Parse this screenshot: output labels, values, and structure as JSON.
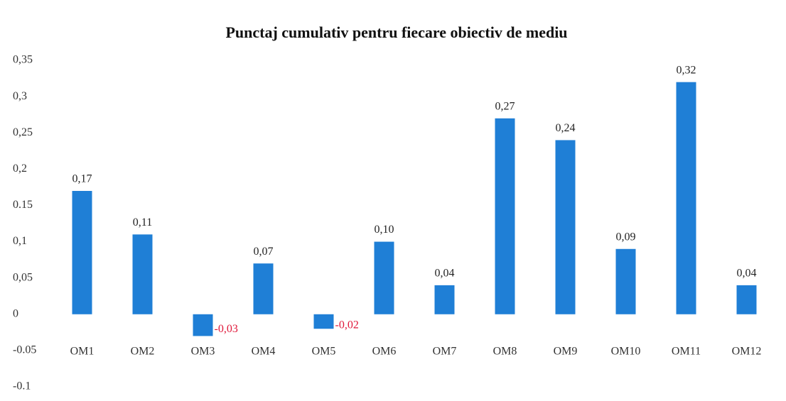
{
  "chart_data": {
    "type": "bar",
    "title": "Punctaj cumulativ pentru fiecare obiectiv de mediu",
    "categories": [
      "OM1",
      "OM2",
      "OM3",
      "OM4",
      "OM5",
      "OM6",
      "OM7",
      "OM8",
      "OM9",
      "OM10",
      "OM11",
      "OM12"
    ],
    "values": [
      0.17,
      0.11,
      -0.03,
      0.07,
      -0.02,
      0.1,
      0.04,
      0.27,
      0.24,
      0.09,
      0.32,
      0.04
    ],
    "value_labels": [
      "0,17",
      "0,11",
      "-0,03",
      "0,07",
      "-0,02",
      "0,10",
      "0,04",
      "0,27",
      "0,24",
      "0,09",
      "0,32",
      "0,04"
    ],
    "color": "#1f7fd6",
    "label_color": "#222222",
    "negative_label_color": "#e0183a",
    "ylim": [
      -0.1,
      0.35
    ],
    "yticks": [
      {
        "value": 0.35,
        "label": "0,35"
      },
      {
        "value": 0.3,
        "label": "0,3"
      },
      {
        "value": 0.25,
        "label": "0,25"
      },
      {
        "value": 0.2,
        "label": "0,2"
      },
      0.15,
      {
        "value": 0.1,
        "label": "0,1"
      },
      {
        "value": 0.05,
        "label": "0,05"
      },
      0,
      -0.05,
      -0.1
    ],
    "grid": false
  }
}
